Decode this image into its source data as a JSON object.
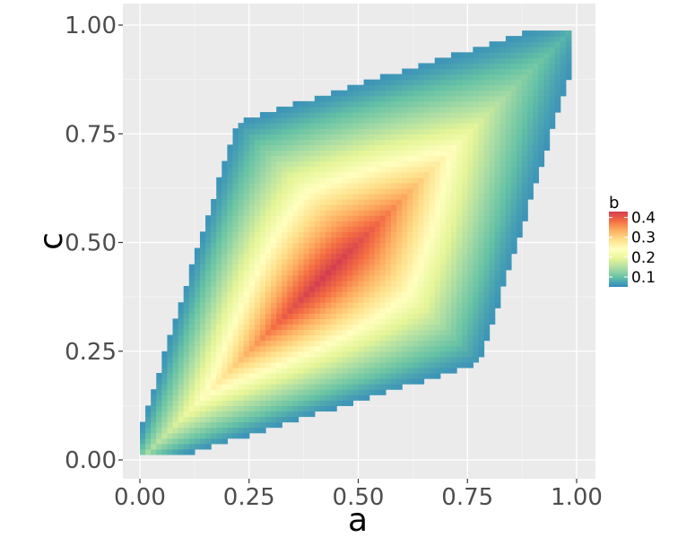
{
  "chart_data": {
    "type": "heatmap",
    "title": "",
    "xlabel": "a",
    "ylabel": "c",
    "xlim": [
      -0.02,
      1.03
    ],
    "ylim": [
      -0.03,
      1.03
    ],
    "x_ticks": [
      "0.00",
      "0.25",
      "0.50",
      "0.75",
      "1.00"
    ],
    "y_ticks": [
      "0.00",
      "0.25",
      "0.50",
      "0.75",
      "1.00"
    ],
    "x_tick_values": [
      0,
      0.25,
      0.5,
      0.75,
      1.0
    ],
    "y_tick_values": [
      0,
      0.25,
      0.5,
      0.75,
      1.0
    ],
    "grid": true,
    "background_color": "#ebebeb",
    "legend": {
      "title": "b",
      "placement": "right",
      "labels": [
        "0.4",
        "0.3",
        "0.2",
        "0.1"
      ],
      "label_values": [
        0.4,
        0.3,
        0.2,
        0.1
      ],
      "range": [
        0.05,
        0.43
      ]
    },
    "colormap": [
      "#3288bd",
      "#66c2a5",
      "#abdda4",
      "#e6f598",
      "#ffffbf",
      "#fee08b",
      "#fdae61",
      "#f46d43",
      "#d53e4f"
    ],
    "density_model": {
      "description_values": "value of b over the (a, c) unit square",
      "peak_b": 0.43,
      "peak_a": 0.43,
      "peak_c": 0.43,
      "edge_b": 0.06
    }
  }
}
